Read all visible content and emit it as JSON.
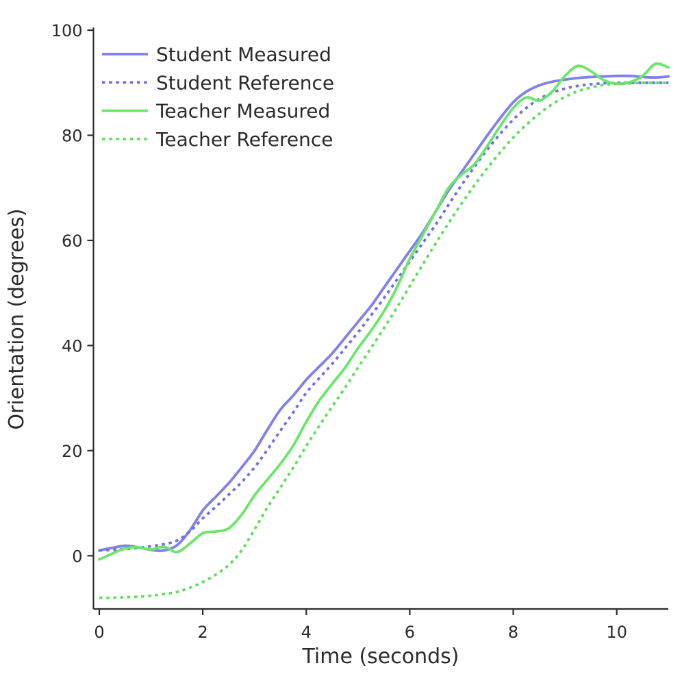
{
  "chart_data": {
    "type": "line",
    "title": "",
    "xlabel": "Time (seconds)",
    "ylabel": "Orientation (degrees)",
    "xlim": [
      -0.11,
      11.05
    ],
    "ylim": [
      -10.1,
      100.6
    ],
    "x_ticks": [
      0,
      2,
      4,
      6,
      8,
      10
    ],
    "y_ticks": [
      0,
      20,
      40,
      60,
      80,
      100
    ],
    "grid": false,
    "legend_position": "upper left",
    "axis_color": "#2b2b2b",
    "background_color": "#ffffff",
    "x": [
      0,
      0.25,
      0.5,
      0.75,
      1,
      1.25,
      1.5,
      1.75,
      2,
      2.25,
      2.5,
      2.75,
      3,
      3.25,
      3.5,
      3.75,
      4,
      4.25,
      4.5,
      4.75,
      5,
      5.25,
      5.5,
      5.75,
      6,
      6.25,
      6.5,
      6.75,
      7,
      7.25,
      7.5,
      7.75,
      8,
      8.25,
      8.5,
      8.75,
      9,
      9.25,
      9.5,
      9.75,
      10,
      10.25,
      10.5,
      10.75,
      11
    ],
    "series": [
      {
        "name": "Student Measured",
        "style": "solid",
        "color": "#7f7ff0",
        "values": [
          1.0,
          1.5,
          1.9,
          1.6,
          1.1,
          1.0,
          2.0,
          4.8,
          8.6,
          11.2,
          13.8,
          16.8,
          20.0,
          24.0,
          27.8,
          30.5,
          33.5,
          36.0,
          38.5,
          41.5,
          44.5,
          47.5,
          51.0,
          54.5,
          58.0,
          61.5,
          65.5,
          69.5,
          73.0,
          76.5,
          80.0,
          83.3,
          86.3,
          88.3,
          89.5,
          90.2,
          90.6,
          90.9,
          91.1,
          91.2,
          91.3,
          91.3,
          91.1,
          91.0,
          91.2
        ]
      },
      {
        "name": "Student Reference",
        "style": "dotted",
        "color": "#6e6eea",
        "values": [
          1.0,
          1.1,
          1.3,
          1.5,
          1.8,
          2.2,
          2.9,
          4.6,
          7.1,
          9.3,
          11.6,
          14.0,
          16.8,
          20.2,
          23.8,
          27.3,
          31.0,
          33.8,
          36.5,
          39.5,
          42.5,
          45.7,
          49.0,
          52.5,
          56.0,
          59.5,
          63.0,
          66.8,
          70.5,
          74.0,
          77.3,
          80.3,
          83.0,
          85.2,
          86.9,
          88.1,
          88.9,
          89.4,
          89.7,
          89.9,
          90.0,
          90.0,
          90.0,
          90.0,
          90.0
        ]
      },
      {
        "name": "Teacher Measured",
        "style": "solid",
        "color": "#68e768",
        "values": [
          -0.7,
          0.4,
          1.4,
          1.6,
          1.2,
          1.7,
          0.7,
          2.3,
          4.3,
          4.6,
          5.2,
          7.8,
          11.5,
          14.5,
          17.5,
          21.0,
          25.5,
          29.5,
          32.7,
          35.8,
          39.5,
          42.8,
          46.5,
          51.0,
          56.5,
          61.0,
          65.5,
          70.0,
          72.5,
          74.5,
          78.0,
          81.8,
          85.2,
          87.2,
          86.6,
          88.3,
          91.3,
          93.2,
          92.2,
          90.5,
          89.8,
          90.1,
          91.3,
          93.6,
          92.9
        ]
      },
      {
        "name": "Teacher Reference",
        "style": "dotted",
        "color": "#5ce05c",
        "values": [
          -8.0,
          -8.0,
          -7.9,
          -7.8,
          -7.6,
          -7.3,
          -6.9,
          -6.1,
          -5.0,
          -3.6,
          -1.8,
          1.0,
          5.0,
          9.2,
          13.0,
          16.8,
          20.9,
          24.7,
          28.4,
          32.0,
          35.8,
          39.5,
          43.3,
          47.2,
          51.3,
          55.4,
          59.4,
          63.3,
          67.0,
          70.5,
          73.8,
          76.8,
          79.6,
          82.0,
          84.1,
          85.9,
          87.3,
          88.4,
          89.1,
          89.6,
          89.8,
          89.9,
          90.0,
          90.0,
          90.0
        ]
      }
    ]
  }
}
